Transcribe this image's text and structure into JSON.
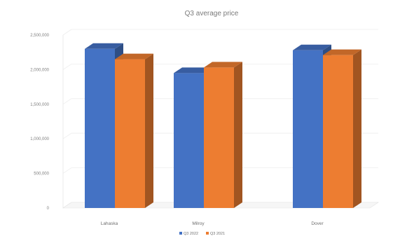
{
  "chart_data": {
    "type": "bar",
    "title": "Q3 average price",
    "categories": [
      "Lahaska",
      "Milroy",
      "Dover"
    ],
    "series": [
      {
        "name": "Q3 2022",
        "values": [
          2300000,
          1950000,
          2280000
        ],
        "color": "#4472c4"
      },
      {
        "name": "Q3 2021",
        "values": [
          2150000,
          2030000,
          2210000
        ],
        "color": "#ed7d31"
      }
    ],
    "ylim": [
      0,
      2500000
    ],
    "yticks": [
      "0",
      "500,000",
      "1,000,000",
      "1,500,000",
      "2,000,000",
      "2,500,000"
    ],
    "ytick_values": [
      0,
      500000,
      1000000,
      1500000,
      2000000,
      2500000
    ],
    "grid": true,
    "legend_position": "bottom",
    "bar_style": "3d-column"
  }
}
